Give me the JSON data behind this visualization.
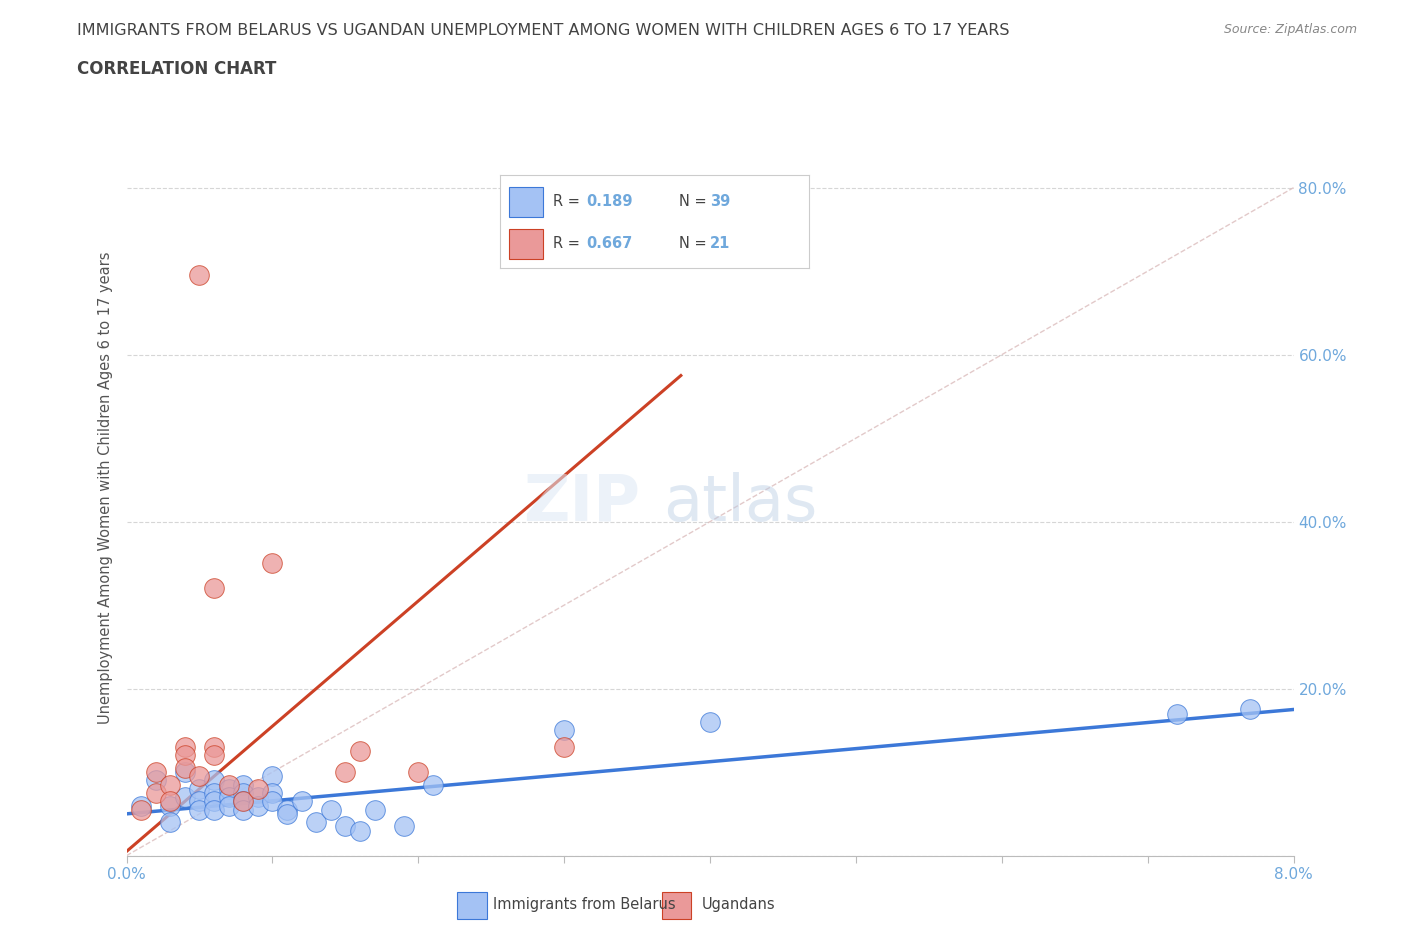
{
  "title_line1": "IMMIGRANTS FROM BELARUS VS UGANDAN UNEMPLOYMENT AMONG WOMEN WITH CHILDREN AGES 6 TO 17 YEARS",
  "title_line2": "CORRELATION CHART",
  "source_text": "Source: ZipAtlas.com",
  "ylabel": "Unemployment Among Women with Children Ages 6 to 17 years",
  "xlim": [
    0.0,
    0.08
  ],
  "ylim": [
    0.0,
    0.88
  ],
  "xticks": [
    0.0,
    0.01,
    0.02,
    0.03,
    0.04,
    0.05,
    0.06,
    0.07,
    0.08
  ],
  "xtick_labels": [
    "0.0%",
    "",
    "",
    "",
    "",
    "",
    "",
    "",
    "8.0%"
  ],
  "ytick_labels": [
    "",
    "20.0%",
    "40.0%",
    "60.0%",
    "80.0%"
  ],
  "ytick_positions": [
    0.0,
    0.2,
    0.4,
    0.6,
    0.8
  ],
  "blue_color": "#a4c2f4",
  "pink_color": "#ea9999",
  "blue_line_color": "#3c78d8",
  "pink_line_color": "#cc4125",
  "diag_color": "#d9b8b8",
  "title_color": "#434343",
  "axis_color": "#6fa8dc",
  "grid_color": "#cccccc",
  "blue_scatter": [
    [
      0.001,
      0.06
    ],
    [
      0.002,
      0.09
    ],
    [
      0.003,
      0.06
    ],
    [
      0.003,
      0.04
    ],
    [
      0.004,
      0.1
    ],
    [
      0.004,
      0.07
    ],
    [
      0.005,
      0.08
    ],
    [
      0.005,
      0.065
    ],
    [
      0.005,
      0.055
    ],
    [
      0.006,
      0.09
    ],
    [
      0.006,
      0.075
    ],
    [
      0.006,
      0.065
    ],
    [
      0.006,
      0.055
    ],
    [
      0.007,
      0.08
    ],
    [
      0.007,
      0.07
    ],
    [
      0.007,
      0.06
    ],
    [
      0.008,
      0.085
    ],
    [
      0.008,
      0.075
    ],
    [
      0.008,
      0.065
    ],
    [
      0.008,
      0.055
    ],
    [
      0.009,
      0.07
    ],
    [
      0.009,
      0.06
    ],
    [
      0.01,
      0.095
    ],
    [
      0.01,
      0.075
    ],
    [
      0.01,
      0.065
    ],
    [
      0.011,
      0.055
    ],
    [
      0.011,
      0.05
    ],
    [
      0.012,
      0.065
    ],
    [
      0.013,
      0.04
    ],
    [
      0.014,
      0.055
    ],
    [
      0.015,
      0.035
    ],
    [
      0.016,
      0.03
    ],
    [
      0.017,
      0.055
    ],
    [
      0.019,
      0.035
    ],
    [
      0.021,
      0.085
    ],
    [
      0.03,
      0.15
    ],
    [
      0.04,
      0.16
    ],
    [
      0.072,
      0.17
    ],
    [
      0.077,
      0.175
    ]
  ],
  "pink_scatter": [
    [
      0.001,
      0.055
    ],
    [
      0.002,
      0.1
    ],
    [
      0.002,
      0.075
    ],
    [
      0.003,
      0.085
    ],
    [
      0.003,
      0.065
    ],
    [
      0.004,
      0.13
    ],
    [
      0.004,
      0.12
    ],
    [
      0.004,
      0.105
    ],
    [
      0.005,
      0.695
    ],
    [
      0.005,
      0.095
    ],
    [
      0.006,
      0.32
    ],
    [
      0.006,
      0.13
    ],
    [
      0.006,
      0.12
    ],
    [
      0.007,
      0.085
    ],
    [
      0.008,
      0.065
    ],
    [
      0.009,
      0.08
    ],
    [
      0.01,
      0.35
    ],
    [
      0.015,
      0.1
    ],
    [
      0.016,
      0.125
    ],
    [
      0.02,
      0.1
    ],
    [
      0.03,
      0.13
    ]
  ],
  "blue_trend_x": [
    0.0,
    0.08
  ],
  "blue_trend_y": [
    0.05,
    0.175
  ],
  "pink_trend_x": [
    0.0,
    0.038
  ],
  "pink_trend_y": [
    0.005,
    0.575
  ],
  "diag_line_x": [
    0.0,
    0.08
  ],
  "diag_line_y": [
    0.0,
    0.8
  ]
}
